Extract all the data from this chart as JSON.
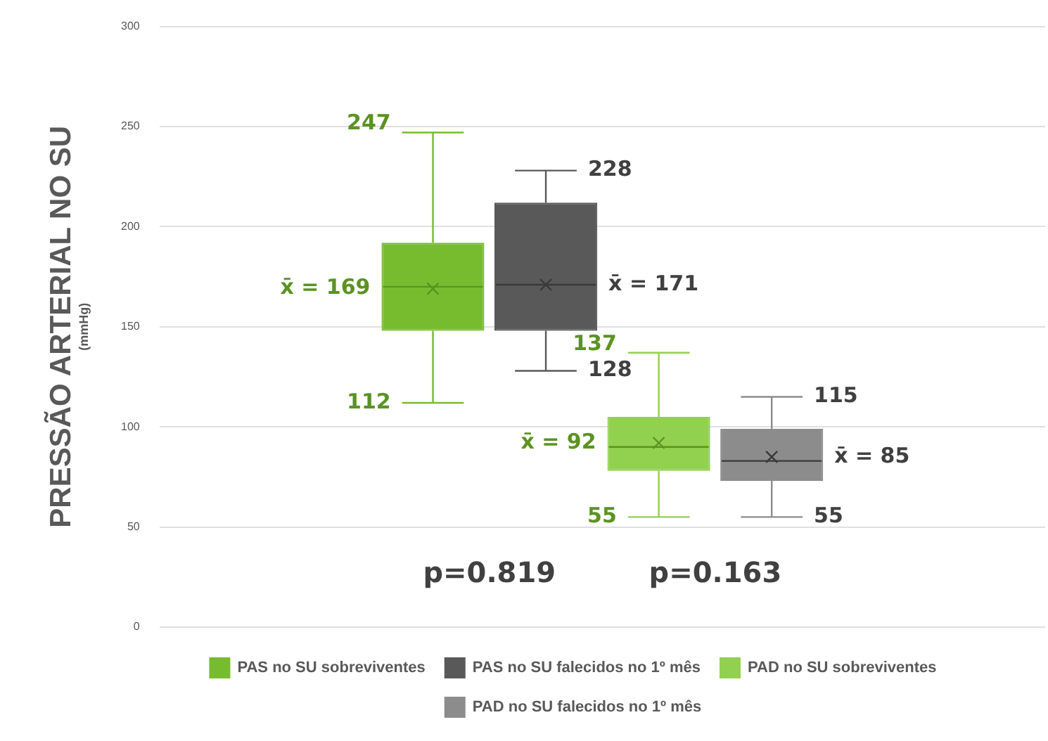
{
  "chart_data": {
    "type": "box",
    "ylabel": "PRESSÃO ARTERIAL NO SU\n(mmHg)",
    "categories": [
      null
    ],
    "ylim": [
      0,
      300
    ],
    "yticks": [
      0,
      50,
      100,
      150,
      200,
      250,
      300
    ],
    "grid": "y",
    "legend": "bottom",
    "marker": "cross",
    "series": [
      {
        "name": "PAS no SU sobreviventes",
        "color": "#77bc2f",
        "boxes": [
          {
            "low": 112,
            "q1": 148,
            "median": 170,
            "q3": 192,
            "high": 247,
            "mean": 169
          }
        ]
      },
      {
        "name": "PAS no SU falecidos no 1º mês",
        "color": "#595959",
        "boxes": [
          {
            "low": 128,
            "q1": 148,
            "median": 171,
            "q3": 212,
            "high": 228,
            "mean": 171
          }
        ]
      },
      {
        "name": "PAD no SU sobreviventes",
        "color": "#92d050",
        "boxes": [
          {
            "low": 55,
            "q1": 78,
            "median": 90,
            "q3": 105,
            "high": 137,
            "mean": 92
          }
        ]
      },
      {
        "name": "PAD no SU falecidos no 1º mês",
        "color": "#8c8c8c",
        "boxes": [
          {
            "low": 55,
            "q1": 73,
            "median": 83,
            "q3": 99,
            "high": 115,
            "mean": 85
          }
        ]
      }
    ],
    "annotations": [
      "247",
      "x̄ = 169",
      "112",
      "228",
      "x̄ = 171",
      "128",
      "137",
      "x̄ = 92",
      "55",
      "115",
      "x̄ = 85",
      "55",
      "p=0.819",
      "p=0.163"
    ]
  }
}
